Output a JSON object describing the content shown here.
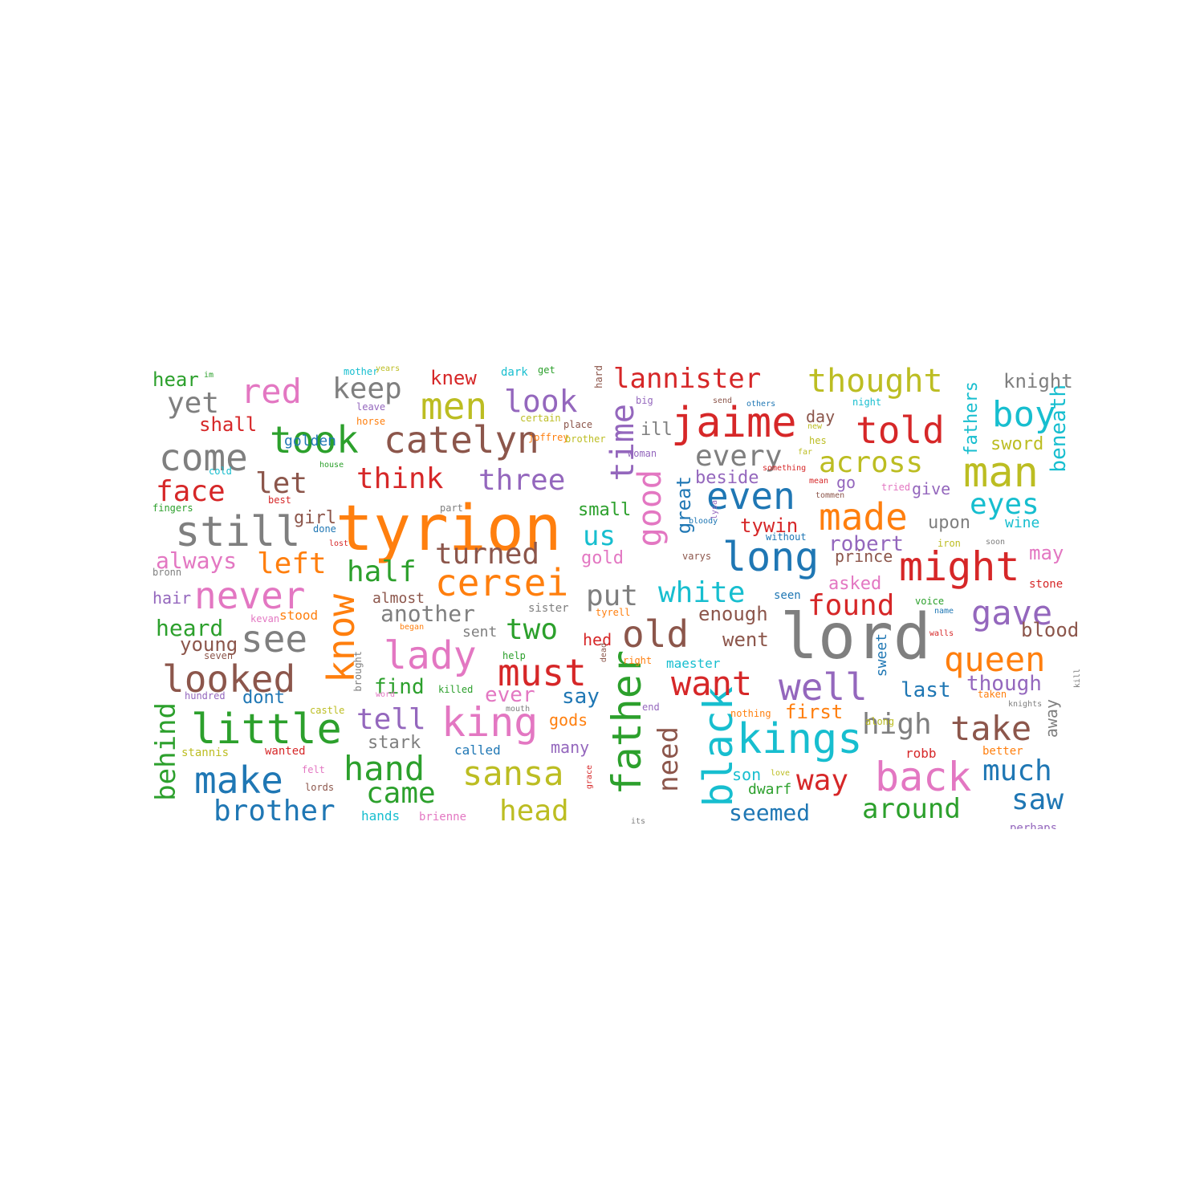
{
  "palette": {
    "blue": "#1f77b4",
    "orange": "#ff7f0e",
    "green": "#2ca02c",
    "red": "#d62728",
    "purple": "#9467bd",
    "brown": "#8c564b",
    "pink": "#e377c2",
    "gray": "#7f7f7f",
    "olive": "#bcbd22",
    "cyan": "#17becf"
  },
  "words": [
    {
      "text": "tyrion",
      "color": "orange"
    },
    {
      "text": "lord",
      "color": "gray"
    },
    {
      "text": "jaime",
      "color": "red"
    },
    {
      "text": "catelyn",
      "color": "brown"
    },
    {
      "text": "still",
      "color": "gray"
    },
    {
      "text": "told",
      "color": "red"
    },
    {
      "text": "man",
      "color": "olive"
    },
    {
      "text": "cersei",
      "color": "orange"
    },
    {
      "text": "took",
      "color": "green"
    },
    {
      "text": "come",
      "color": "gray"
    },
    {
      "text": "kings",
      "color": "cyan"
    },
    {
      "text": "little",
      "color": "green"
    },
    {
      "text": "might",
      "color": "red"
    },
    {
      "text": "long",
      "color": "blue"
    },
    {
      "text": "king",
      "color": "pink"
    },
    {
      "text": "father",
      "color": "green"
    },
    {
      "text": "back",
      "color": "pink"
    },
    {
      "text": "lady",
      "color": "pink"
    },
    {
      "text": "well",
      "color": "purple"
    },
    {
      "text": "even",
      "color": "blue"
    },
    {
      "text": "made",
      "color": "orange"
    },
    {
      "text": "looked",
      "color": "brown"
    },
    {
      "text": "black",
      "color": "cyan"
    },
    {
      "text": "know",
      "color": "orange"
    },
    {
      "text": "men",
      "color": "olive"
    },
    {
      "text": "never",
      "color": "pink"
    },
    {
      "text": "old",
      "color": "brown"
    },
    {
      "text": "time",
      "color": "purple"
    },
    {
      "text": "good",
      "color": "pink"
    },
    {
      "text": "must",
      "color": "red"
    },
    {
      "text": "thought",
      "color": "olive"
    },
    {
      "text": "boy",
      "color": "cyan"
    },
    {
      "text": "red",
      "color": "pink"
    },
    {
      "text": "see",
      "color": "gray"
    },
    {
      "text": "make",
      "color": "blue"
    },
    {
      "text": "sansa",
      "color": "olive"
    },
    {
      "text": "hand",
      "color": "green"
    },
    {
      "text": "take",
      "color": "brown"
    },
    {
      "text": "queen",
      "color": "orange"
    },
    {
      "text": "want",
      "color": "red"
    },
    {
      "text": "gave",
      "color": "purple"
    },
    {
      "text": "lannister",
      "color": "red"
    },
    {
      "text": "look",
      "color": "purple"
    },
    {
      "text": "every",
      "color": "gray"
    },
    {
      "text": "across",
      "color": "olive"
    },
    {
      "text": "three",
      "color": "purple"
    },
    {
      "text": "think",
      "color": "red"
    },
    {
      "text": "turned",
      "color": "brown"
    },
    {
      "text": "keep",
      "color": "gray"
    },
    {
      "text": "yet",
      "color": "gray"
    },
    {
      "text": "face",
      "color": "red"
    },
    {
      "text": "let",
      "color": "brown"
    },
    {
      "text": "left",
      "color": "orange"
    },
    {
      "text": "half",
      "color": "green"
    },
    {
      "text": "put",
      "color": "gray"
    },
    {
      "text": "white",
      "color": "cyan"
    },
    {
      "text": "us",
      "color": "cyan"
    },
    {
      "text": "two",
      "color": "green"
    },
    {
      "text": "found",
      "color": "red"
    },
    {
      "text": "eyes",
      "color": "cyan"
    },
    {
      "text": "tell",
      "color": "purple"
    },
    {
      "text": "high",
      "color": "gray"
    },
    {
      "text": "much",
      "color": "blue"
    },
    {
      "text": "saw",
      "color": "blue"
    },
    {
      "text": "around",
      "color": "green"
    },
    {
      "text": "head",
      "color": "olive"
    },
    {
      "text": "came",
      "color": "green"
    },
    {
      "text": "brother",
      "color": "blue"
    },
    {
      "text": "way",
      "color": "red"
    },
    {
      "text": "behind",
      "color": "green"
    },
    {
      "text": "need",
      "color": "brown"
    },
    {
      "text": "seemed",
      "color": "blue"
    },
    {
      "text": "always",
      "color": "pink"
    },
    {
      "text": "heard",
      "color": "green"
    },
    {
      "text": "young",
      "color": "brown"
    },
    {
      "text": "another",
      "color": "gray"
    },
    {
      "text": "find",
      "color": "green"
    },
    {
      "text": "ever",
      "color": "pink"
    },
    {
      "text": "say",
      "color": "blue"
    },
    {
      "text": "robert",
      "color": "purple"
    },
    {
      "text": "tywin",
      "color": "red"
    },
    {
      "text": "great",
      "color": "blue"
    },
    {
      "text": "beside",
      "color": "purple"
    },
    {
      "text": "went",
      "color": "brown"
    },
    {
      "text": "enough",
      "color": "brown"
    },
    {
      "text": "last",
      "color": "blue"
    },
    {
      "text": "though",
      "color": "purple"
    },
    {
      "text": "first",
      "color": "orange"
    },
    {
      "text": "blood",
      "color": "brown"
    },
    {
      "text": "may",
      "color": "pink"
    },
    {
      "text": "asked",
      "color": "pink"
    },
    {
      "text": "upon",
      "color": "gray"
    },
    {
      "text": "prince",
      "color": "brown"
    },
    {
      "text": "sword",
      "color": "olive"
    },
    {
      "text": "fathers",
      "color": "cyan"
    },
    {
      "text": "beneath",
      "color": "cyan"
    },
    {
      "text": "knight",
      "color": "gray"
    },
    {
      "text": "small",
      "color": "green"
    },
    {
      "text": "gold",
      "color": "pink"
    },
    {
      "text": "girl",
      "color": "brown"
    },
    {
      "text": "shall",
      "color": "red"
    },
    {
      "text": "golden",
      "color": "blue"
    },
    {
      "text": "hear",
      "color": "green"
    },
    {
      "text": "knew",
      "color": "red"
    },
    {
      "text": "hair",
      "color": "purple"
    },
    {
      "text": "dont",
      "color": "blue"
    },
    {
      "text": "stark",
      "color": "gray"
    },
    {
      "text": "called",
      "color": "blue"
    },
    {
      "text": "gods",
      "color": "orange"
    },
    {
      "text": "many",
      "color": "purple"
    },
    {
      "text": "hed",
      "color": "red"
    },
    {
      "text": "almost",
      "color": "brown"
    },
    {
      "text": "sent",
      "color": "gray"
    },
    {
      "text": "stood",
      "color": "orange"
    },
    {
      "text": "day",
      "color": "brown"
    },
    {
      "text": "ill",
      "color": "gray"
    },
    {
      "text": "go",
      "color": "purple"
    },
    {
      "text": "give",
      "color": "purple"
    },
    {
      "text": "wine",
      "color": "cyan"
    },
    {
      "text": "maester",
      "color": "cyan"
    },
    {
      "text": "son",
      "color": "cyan"
    },
    {
      "text": "dwarf",
      "color": "green"
    },
    {
      "text": "robb",
      "color": "red"
    },
    {
      "text": "sweet",
      "color": "blue"
    },
    {
      "text": "away",
      "color": "gray"
    },
    {
      "text": "hands",
      "color": "cyan"
    },
    {
      "text": "brienne",
      "color": "pink"
    },
    {
      "text": "stone",
      "color": "red"
    },
    {
      "text": "better",
      "color": "orange"
    },
    {
      "text": "perhaps",
      "color": "purple"
    },
    {
      "text": "seen",
      "color": "blue"
    },
    {
      "text": "voice",
      "color": "green"
    },
    {
      "text": "name",
      "color": "blue"
    },
    {
      "text": "tyrell",
      "color": "orange"
    },
    {
      "text": "right",
      "color": "orange"
    },
    {
      "text": "sister",
      "color": "gray"
    },
    {
      "text": "wanted",
      "color": "red"
    },
    {
      "text": "stannis",
      "color": "olive"
    },
    {
      "text": "lords",
      "color": "brown"
    },
    {
      "text": "felt",
      "color": "pink"
    },
    {
      "text": "castle",
      "color": "olive"
    },
    {
      "text": "hundred",
      "color": "purple"
    },
    {
      "text": "kevan",
      "color": "pink"
    },
    {
      "text": "bronn",
      "color": "gray"
    },
    {
      "text": "fingers",
      "color": "green"
    },
    {
      "text": "best",
      "color": "red"
    },
    {
      "text": "cold",
      "color": "cyan"
    },
    {
      "text": "house",
      "color": "green"
    },
    {
      "text": "done",
      "color": "blue"
    },
    {
      "text": "lost",
      "color": "red"
    },
    {
      "text": "part",
      "color": "gray"
    },
    {
      "text": "joffrey",
      "color": "orange"
    },
    {
      "text": "woman",
      "color": "purple"
    },
    {
      "text": "place",
      "color": "brown"
    },
    {
      "text": "brother",
      "color": "olive"
    },
    {
      "text": "certain",
      "color": "olive"
    },
    {
      "text": "horse",
      "color": "orange"
    },
    {
      "text": "leave",
      "color": "purple"
    },
    {
      "text": "mother",
      "color": "cyan"
    },
    {
      "text": "years",
      "color": "olive"
    },
    {
      "text": "dark",
      "color": "cyan"
    },
    {
      "text": "get",
      "color": "green"
    },
    {
      "text": "hard",
      "color": "brown"
    },
    {
      "text": "big",
      "color": "purple"
    },
    {
      "text": "send",
      "color": "brown"
    },
    {
      "text": "others",
      "color": "blue"
    },
    {
      "text": "night",
      "color": "cyan"
    },
    {
      "text": "new",
      "color": "olive"
    },
    {
      "text": "hes",
      "color": "olive"
    },
    {
      "text": "far",
      "color": "olive"
    },
    {
      "text": "something",
      "color": "red"
    },
    {
      "text": "mean",
      "color": "red"
    },
    {
      "text": "tommen",
      "color": "brown"
    },
    {
      "text": "tried",
      "color": "pink"
    },
    {
      "text": "bloody",
      "color": "blue"
    },
    {
      "text": "lysa",
      "color": "purple"
    },
    {
      "text": "without",
      "color": "blue"
    },
    {
      "text": "iron",
      "color": "olive"
    },
    {
      "text": "soon",
      "color": "gray"
    },
    {
      "text": "varys",
      "color": "brown"
    },
    {
      "text": "walls",
      "color": "red"
    },
    {
      "text": "kill",
      "color": "gray"
    },
    {
      "text": "knights",
      "color": "gray"
    },
    {
      "text": "taken",
      "color": "orange"
    },
    {
      "text": "along",
      "color": "olive"
    },
    {
      "text": "love",
      "color": "olive"
    },
    {
      "text": "nothing",
      "color": "orange"
    },
    {
      "text": "end",
      "color": "purple"
    },
    {
      "text": "dead",
      "color": "brown"
    },
    {
      "text": "grace",
      "color": "red"
    },
    {
      "text": "its",
      "color": "gray"
    },
    {
      "text": "mouth",
      "color": "gray"
    },
    {
      "text": "killed",
      "color": "green"
    },
    {
      "text": "help",
      "color": "green"
    },
    {
      "text": "word",
      "color": "pink"
    },
    {
      "text": "began",
      "color": "orange"
    },
    {
      "text": "brought",
      "color": "gray"
    },
    {
      "text": "seven",
      "color": "brown"
    },
    {
      "text": "im",
      "color": "green"
    },
    {
      "text": "bring",
      "color": "brown"
    }
  ]
}
